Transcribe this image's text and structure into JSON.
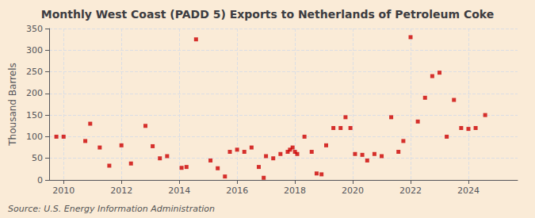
{
  "chart_data": {
    "type": "scatter",
    "title": "Monthly West Coast (PADD 5) Exports to Netherlands of Petroleum Coke",
    "ylabel": "Thousand Barrels",
    "source": "Source: U.S. Energy Information Administration",
    "color": "#cc0000",
    "marker": "square",
    "grid": true,
    "xlim": [
      2009.5,
      2025.7
    ],
    "ylim": [
      0,
      350
    ],
    "xticks": [
      2010,
      2012,
      2014,
      2016,
      2018,
      2020,
      2022,
      2024
    ],
    "yticks": [
      0,
      50,
      100,
      150,
      200,
      250,
      300,
      350
    ],
    "x": [
      2009.75,
      2010.0,
      2010.75,
      2010.92,
      2011.25,
      2011.58,
      2012.0,
      2012.33,
      2012.83,
      2013.08,
      2013.33,
      2013.58,
      2014.08,
      2014.25,
      2014.58,
      2015.08,
      2015.33,
      2015.58,
      2015.75,
      2016.0,
      2016.25,
      2016.5,
      2016.75,
      2016.92,
      2017.0,
      2017.25,
      2017.5,
      2017.75,
      2017.83,
      2017.92,
      2018.0,
      2018.08,
      2018.33,
      2018.58,
      2018.75,
      2018.92,
      2019.08,
      2019.33,
      2019.58,
      2019.75,
      2019.92,
      2020.08,
      2020.33,
      2020.5,
      2020.75,
      2021.0,
      2021.33,
      2021.58,
      2021.75,
      2022.0,
      2022.25,
      2022.5,
      2022.75,
      2023.0,
      2023.25,
      2023.5,
      2023.75,
      2024.0,
      2024.25,
      2024.58
    ],
    "values": [
      100,
      100,
      90,
      130,
      75,
      33,
      80,
      38,
      125,
      78,
      50,
      55,
      28,
      30,
      325,
      45,
      27,
      8,
      65,
      70,
      65,
      75,
      30,
      5,
      55,
      50,
      60,
      65,
      70,
      75,
      65,
      60,
      100,
      65,
      15,
      13,
      80,
      120,
      120,
      145,
      120,
      60,
      58,
      45,
      60,
      55,
      145,
      65,
      90,
      330,
      135,
      190,
      240,
      248,
      100,
      185,
      120,
      118,
      120,
      150
    ]
  }
}
